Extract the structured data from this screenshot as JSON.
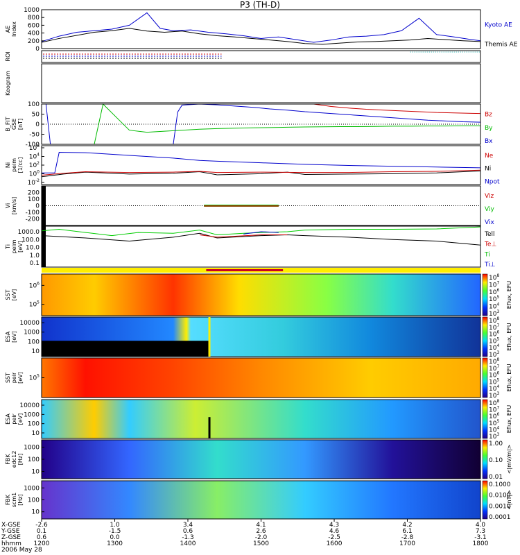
{
  "chart_data": {
    "type": "line",
    "title": "P3 (TH-D)",
    "panels": [
      {
        "id": "ae",
        "ylabel": "AE Index",
        "ylim": [
          0,
          1000
        ],
        "yticks": [
          "1000",
          "800",
          "600",
          "400",
          "200",
          "0"
        ],
        "legend": [
          {
            "label": "Kyoto AE",
            "color": "#0000cc"
          },
          {
            "label": "Themis AE",
            "color": "#000000"
          }
        ],
        "series": [
          {
            "name": "Kyoto AE",
            "color": "#0000cc",
            "x": [
              0,
              4,
              8,
              12,
              16,
              20,
              24,
              27,
              30,
              34,
              38,
              42,
              46,
              50,
              54,
              58,
              62,
              66,
              70,
              74,
              78,
              82,
              86,
              90,
              94,
              98,
              100
            ],
            "y": [
              180,
              320,
              420,
              460,
              500,
              600,
              920,
              520,
              460,
              480,
              420,
              380,
              330,
              260,
              300,
              230,
              160,
              220,
              300,
              320,
              360,
              460,
              780,
              360,
              300,
              230,
              200
            ]
          },
          {
            "name": "Themis AE",
            "color": "#000000",
            "x": [
              0,
              4,
              8,
              12,
              16,
              20,
              24,
              28,
              32,
              36,
              40,
              44,
              48,
              52,
              56,
              60,
              64,
              68,
              72,
              76,
              80,
              84,
              88,
              92,
              96,
              100
            ],
            "y": [
              160,
              260,
              340,
              420,
              460,
              520,
              450,
              420,
              450,
              380,
              330,
              300,
              260,
              220,
              180,
              130,
              110,
              140,
              170,
              180,
              200,
              220,
              260,
              230,
              200,
              180
            ]
          }
        ]
      },
      {
        "id": "roi",
        "ylabel": "ROI"
      },
      {
        "id": "keogram",
        "ylabel": "Keogram"
      },
      {
        "id": "bfit",
        "ylabel": "B_FIT GSE [nT]",
        "ylim": [
          -100,
          100
        ],
        "yticks": [
          "100",
          "50",
          "0",
          "-50",
          "-100"
        ],
        "legend": [
          {
            "label": "Bz",
            "color": "#cc0000"
          },
          {
            "label": "By",
            "color": "#00bb00"
          },
          {
            "label": "Bx",
            "color": "#0000cc"
          }
        ],
        "series": [
          {
            "name": "Bz",
            "color": "#cc0000",
            "x": [
              62,
              66,
              70,
              74,
              78,
              82,
              86,
              90,
              94,
              98,
              100
            ],
            "y": [
              100,
              88,
              80,
              74,
              70,
              66,
              62,
              58,
              56,
              54,
              53
            ]
          },
          {
            "name": "By",
            "color": "#00bb00",
            "x": [
              12,
              14,
              20,
              24,
              28,
              32,
              36,
              40,
              44,
              48,
              52,
              56,
              60,
              64,
              68,
              72,
              76,
              80,
              84,
              88,
              92,
              96,
              100
            ],
            "y": [
              -100,
              100,
              -30,
              -40,
              -35,
              -30,
              -25,
              -22,
              -20,
              -18,
              -17,
              -15,
              -14,
              -13,
              -12,
              -12,
              -11,
              -10,
              -10,
              -9,
              -9,
              -8,
              -8
            ]
          },
          {
            "name": "Bx",
            "color": "#0000cc",
            "x": [
              1,
              2,
              3,
              30,
              31,
              32,
              36,
              40,
              44,
              48,
              52,
              56,
              60,
              64,
              68,
              72,
              76,
              80,
              84,
              88,
              92,
              96,
              100
            ],
            "y": [
              100,
              -100,
              -100,
              -100,
              60,
              95,
              100,
              96,
              90,
              84,
              76,
              70,
              62,
              56,
              50,
              44,
              38,
              32,
              26,
              20,
              16,
              12,
              10
            ]
          }
        ]
      },
      {
        "id": "ni",
        "ylabel": "Ni peim [1/cc]",
        "yticks": [
          "10^6",
          "10^4",
          "10^2",
          "10^0",
          "10^-2"
        ],
        "legend": [
          {
            "label": "Ne",
            "color": "#cc0000"
          },
          {
            "label": "Ni",
            "color": "#000000"
          },
          {
            "label": "Npot",
            "color": "#0000cc"
          }
        ]
      },
      {
        "id": "vi",
        "ylabel": "Vi [km/s]",
        "ylim": [
          -300,
          300
        ],
        "yticks": [
          "200",
          "100",
          "0",
          "-100",
          "-200"
        ],
        "legend": [
          {
            "label": "Viz",
            "color": "#cc0000"
          },
          {
            "label": "Viy",
            "color": "#00bb00"
          },
          {
            "label": "Vix",
            "color": "#0000cc"
          }
        ]
      },
      {
        "id": "ti",
        "ylabel": "Ti peim [eV]",
        "yticks": [
          "1000.0",
          "100.0",
          "10.0",
          "1.0",
          "0.1"
        ],
        "legend": [
          {
            "label": "Tell",
            "color": "#000000"
          },
          {
            "label": "Te⊥",
            "color": "#cc0000"
          },
          {
            "label": "Ti",
            "color": "#00bb00"
          },
          {
            "label": "Ti⊥",
            "color": "#0000cc"
          }
        ]
      },
      {
        "id": "sst1",
        "ylabel": "SST [eV]",
        "yticks": [
          "10^6",
          "10^5"
        ],
        "cbar_label": "Eflux, EFU",
        "cbar_ticks": [
          "10^8",
          "10^7",
          "10^6",
          "10^5",
          "10^4",
          "10^3"
        ]
      },
      {
        "id": "esa1",
        "ylabel": "ESA [eV]",
        "yticks": [
          "10000",
          "1000",
          "100",
          "10"
        ],
        "cbar_label": "Eflux, EFU",
        "cbar_ticks": [
          "10^8",
          "10^7",
          "10^6",
          "10^5",
          "10^4",
          "10^3"
        ]
      },
      {
        "id": "sst2",
        "ylabel": "SST peir [eV]",
        "yticks": [
          "10^5"
        ],
        "cbar_label": "Eflux, EFU",
        "cbar_ticks": [
          "10^8",
          "10^7",
          "10^6",
          "10^5",
          "10^4",
          "10^3"
        ]
      },
      {
        "id": "esa2",
        "ylabel": "ESA peir [eV]",
        "yticks": [
          "10000",
          "1000",
          "100",
          "10"
        ],
        "cbar_label": "Eflux, EFU",
        "cbar_ticks": [
          "10^8",
          "10^7",
          "10^6",
          "10^5",
          "10^4",
          "10^3"
        ]
      },
      {
        "id": "fbk1",
        "ylabel": "FBK edc12 [Hz]",
        "yticks": [
          "1000",
          "100",
          "10"
        ],
        "cbar_label": "<|mV/m|>",
        "cbar_ticks": [
          "1.00",
          "0.10",
          "0.01"
        ]
      },
      {
        "id": "fbk2",
        "ylabel": "FBK scm1 [Hz]",
        "yticks": [
          "1000",
          "100",
          "10"
        ],
        "cbar_label": "<|nT|>",
        "cbar_ticks": [
          "0.1000",
          "0.0100",
          "0.0010",
          "0.0001"
        ]
      }
    ],
    "x_axis": {
      "row_labels": [
        "X-GSE",
        "Y-GSE",
        "Z-GSE",
        "hhmm"
      ],
      "date": "2006 May 28",
      "columns": [
        {
          "x": 0,
          "X-GSE": "-2.6",
          "Y-GSE": "0.1",
          "Z-GSE": "0.6",
          "hhmm": "1200"
        },
        {
          "x": 16.67,
          "X-GSE": "1.0",
          "Y-GSE": "-1.5",
          "Z-GSE": "0.0",
          "hhmm": "1300"
        },
        {
          "x": 33.33,
          "X-GSE": "3.4",
          "Y-GSE": "0.6",
          "Z-GSE": "-1.3",
          "hhmm": "1400"
        },
        {
          "x": 50,
          "X-GSE": "4.1",
          "Y-GSE": "2.6",
          "Z-GSE": "-2.0",
          "hhmm": "1500"
        },
        {
          "x": 66.67,
          "X-GSE": "4.3",
          "Y-GSE": "4.6",
          "Z-GSE": "-2.5",
          "hhmm": "1600"
        },
        {
          "x": 83.33,
          "X-GSE": "4.2",
          "Y-GSE": "6.1",
          "Z-GSE": "-2.8",
          "hhmm": "1700"
        },
        {
          "x": 100,
          "X-GSE": "4.0",
          "Y-GSE": "7.3",
          "Z-GSE": "-3.1",
          "hhmm": "1800"
        }
      ]
    }
  }
}
